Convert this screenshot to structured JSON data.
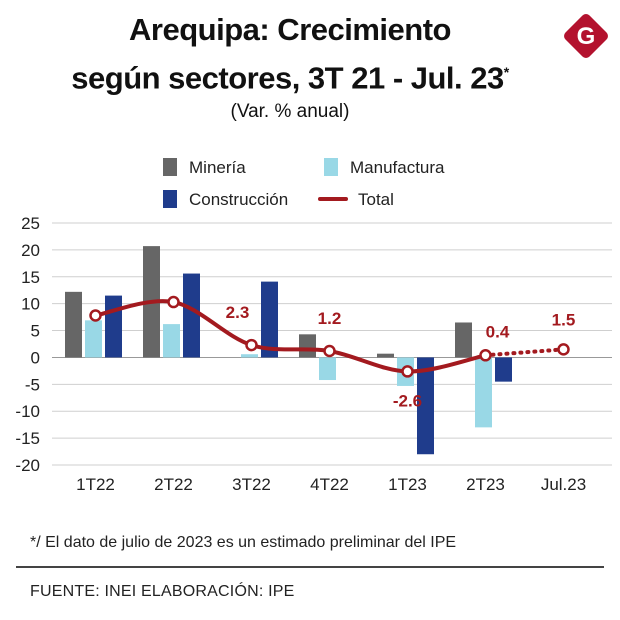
{
  "title_line1": "Arequipa: Crecimiento",
  "title_line2": "según sectores, 3T 21 - Jul. 23",
  "title_mark": "*",
  "subtitle": "(Var. % anual)",
  "logo_letter": "G",
  "note": "*/ El dato de julio de 2023 es un estimado preliminar del IPE",
  "source": "FUENTE: INEI  ELABORACIÓN: IPE",
  "colors": {
    "mineria": "#666666",
    "manufactura": "#99d8e6",
    "construccion": "#1f3c8c",
    "total": "#a31a1f",
    "grid": "#cfcfcf",
    "zero": "#999999",
    "logo": "#b3122e"
  },
  "chart_data": {
    "type": "bar",
    "categories": [
      "1T22",
      "2T22",
      "3T22",
      "4T22",
      "1T23",
      "2T23",
      "Jul.23"
    ],
    "series": [
      {
        "name": "Minería",
        "values": [
          12.2,
          20.7,
          null,
          4.3,
          0.7,
          6.5,
          null
        ]
      },
      {
        "name": "Manufactura",
        "values": [
          6.9,
          6.2,
          0.6,
          -4.2,
          -5.3,
          -13.0,
          null
        ]
      },
      {
        "name": "Construcción",
        "values": [
          11.5,
          15.6,
          14.1,
          null,
          -18.0,
          -4.5,
          null
        ]
      }
    ],
    "line": {
      "name": "Total",
      "values": [
        7.8,
        10.3,
        2.3,
        1.2,
        -2.6,
        0.4,
        1.5
      ],
      "labels": [
        "",
        "",
        "2.3",
        "1.2",
        "-2.6",
        "0.4",
        "1.5"
      ],
      "dotted_last_segment": true
    },
    "yticks": [
      25,
      20,
      15,
      10,
      5,
      0,
      -5,
      -10,
      -15,
      -20
    ],
    "ylim": [
      -20,
      25
    ],
    "legend": [
      "Minería",
      "Manufactura",
      "Construcción",
      "Total"
    ],
    "legend_position": "top",
    "xlabel": "",
    "ylabel": "",
    "grid": true
  }
}
